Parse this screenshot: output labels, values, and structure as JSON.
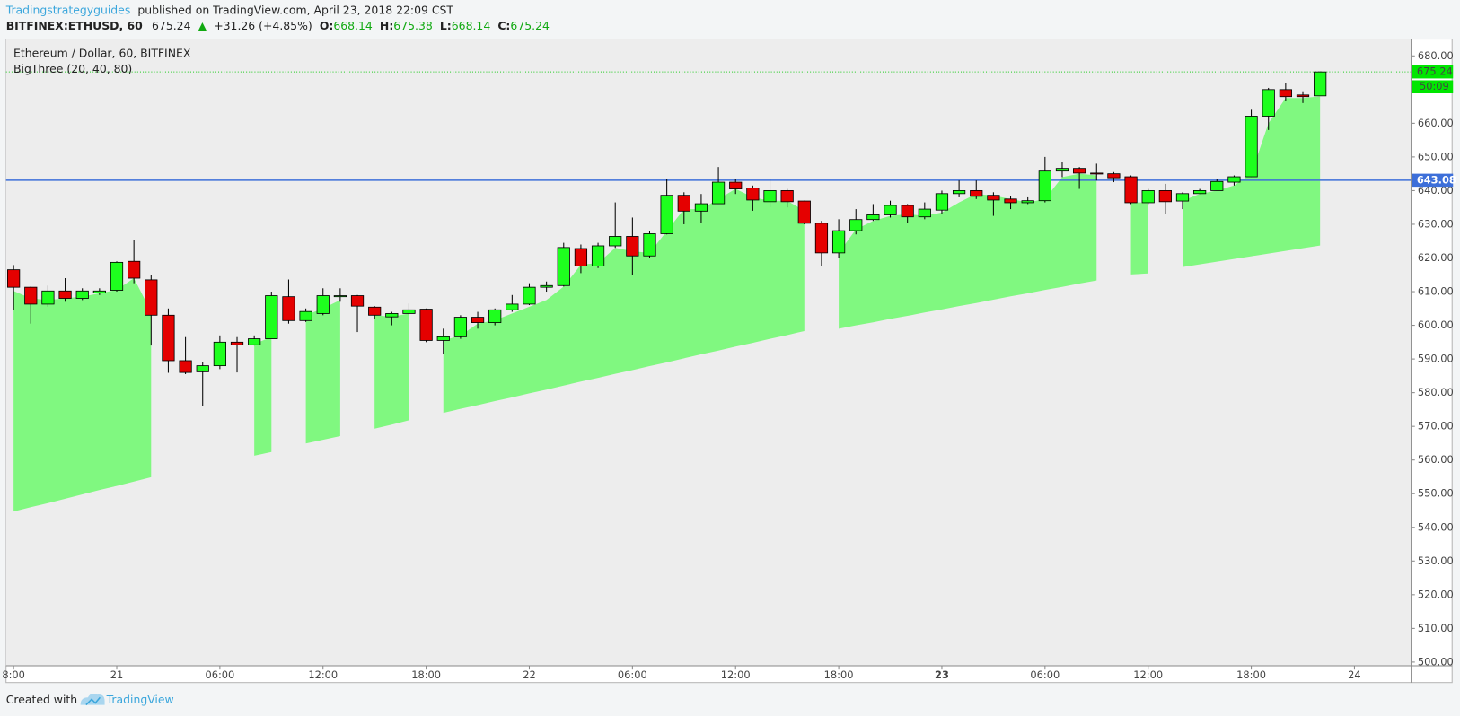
{
  "header": {
    "author": "Tradingstrategyguides",
    "published": "published on TradingView.com, April 23, 2018 22:09 CST",
    "symbol": "BITFINEX:ETHUSD, 60",
    "arrow": "▲",
    "change": "+31.26 (+4.85%)",
    "o_label": "O:",
    "h_label": "H:",
    "l_label": "L:",
    "c_label": "C:"
  },
  "footer": {
    "created": "Created with",
    "brand": "TradingView"
  },
  "chart_data": {
    "type": "candlestick",
    "title": "Ethereum / Dollar, 60, BITFINEX",
    "indicator": "BigThree (20, 40, 80)",
    "up_color": "#1eff1e",
    "down_color": "#e50000",
    "area_color": "#80f880",
    "open": [
      616.5,
      611.3,
      606.3,
      610.2,
      608,
      609.6,
      610.4,
      619,
      613.5,
      603,
      589.5,
      586.2,
      588,
      595,
      594.2,
      596,
      608.5,
      601.4,
      603.5,
      608.5,
      608.8,
      605.4,
      602.5,
      603.5,
      604.8,
      595.5,
      596.6,
      602.4,
      600.8,
      604.6,
      606.3,
      611.3,
      611.8,
      622.8,
      617.6,
      623.6,
      626.4,
      620.6,
      627.2,
      638.6,
      633.9,
      636.1,
      642.5,
      640.8,
      636.7,
      640,
      636.9,
      630.3,
      621.5,
      628.1,
      631.4,
      632.8,
      635.6,
      632.2,
      634.2,
      639.1,
      640,
      638.6,
      637.5,
      636.4,
      637,
      645.8,
      646.6,
      645.2,
      645,
      644.1,
      636.4,
      640,
      636.9,
      639.1,
      640,
      642.5,
      644.1,
      662.1,
      670,
      668.4,
      668.14
    ],
    "high": [
      617.9,
      611.5,
      611.8,
      614,
      611,
      611,
      619,
      625.3,
      615,
      605,
      596.5,
      589,
      597,
      596.5,
      597,
      610,
      613.6,
      605,
      611,
      611,
      609,
      605.7,
      604,
      606.5,
      605,
      599,
      603,
      604,
      605,
      609,
      612.5,
      613,
      624.5,
      624,
      624.5,
      636.5,
      632,
      628,
      643.5,
      639.5,
      639,
      647,
      643.5,
      641.5,
      643.5,
      640.5,
      637,
      631,
      631.5,
      634.5,
      636,
      637,
      636,
      636.5,
      640,
      643,
      643,
      639.5,
      638.5,
      638,
      650,
      648.5,
      647,
      648,
      645.5,
      644.5,
      640.5,
      642,
      639.5,
      640.5,
      643.5,
      644.5,
      664,
      670.5,
      672,
      669.5,
      675.38
    ],
    "low": [
      604.6,
      600.5,
      605.5,
      607,
      607.5,
      609,
      610,
      612.5,
      594,
      585.9,
      585.5,
      576,
      587,
      586,
      594,
      596,
      600.5,
      601,
      603,
      607,
      598,
      602,
      600,
      603,
      595,
      591.5,
      596,
      599,
      600,
      604,
      606,
      610,
      611.5,
      615.5,
      617,
      623,
      615,
      620,
      627,
      630,
      630.5,
      636,
      639,
      634,
      635,
      635,
      630,
      617.5,
      620,
      627,
      631,
      632,
      630.5,
      631.5,
      633,
      638,
      637.5,
      632.5,
      634.5,
      636,
      636.5,
      644,
      640.5,
      643,
      642.5,
      636,
      636,
      633,
      634.5,
      639,
      640,
      641.5,
      644,
      658,
      666.5,
      666,
      668.14
    ],
    "close": [
      611.3,
      606.3,
      610.2,
      608,
      610.2,
      610.2,
      618.7,
      614,
      603,
      589.5,
      586,
      588,
      595,
      594.2,
      596,
      608.8,
      601.4,
      604.1,
      608.8,
      608.8,
      605.7,
      603,
      603.5,
      604.6,
      595.5,
      596.6,
      602.4,
      600.8,
      604.6,
      606.3,
      611.3,
      611.8,
      623.1,
      617.6,
      623.6,
      626.4,
      620.6,
      627.2,
      638.6,
      633.9,
      636.1,
      642.5,
      640.5,
      637.2,
      640,
      636.7,
      630.3,
      621.5,
      628.1,
      631.4,
      632.8,
      635.6,
      632.2,
      634.5,
      639.1,
      640,
      638.3,
      637.2,
      636.4,
      637,
      645.8,
      646.6,
      645.2,
      645,
      643.8,
      636.4,
      640,
      636.7,
      639.1,
      640,
      642.7,
      644.1,
      662.1,
      670,
      667.9,
      667.9,
      675.24
    ],
    "area_upper": [
      610.2,
      608,
      607.5,
      608,
      608.5,
      609.5,
      610.5,
      614,
      604,
      null,
      null,
      null,
      null,
      null,
      594.5,
      596.5,
      null,
      603,
      605,
      607.5,
      null,
      603,
      602.5,
      603.5,
      null,
      595.5,
      597,
      600.5,
      601.5,
      603.5,
      605.5,
      607.5,
      611.5,
      618,
      618.5,
      623,
      622,
      621.5,
      628,
      634.5,
      634.5,
      637.5,
      640.5,
      638,
      637,
      637,
      634,
      null,
      621.5,
      628.5,
      631,
      632.5,
      633,
      632.5,
      633.5,
      636.5,
      639,
      638.5,
      637.5,
      636.5,
      637.5,
      644,
      645,
      644.5,
      null,
      636.5,
      636.5,
      null,
      637,
      639,
      640,
      641.5,
      645,
      660,
      667.5,
      667.5,
      668
    ],
    "area_lower": [
      544.7,
      546.0,
      547.2,
      548.5,
      549.8,
      551.1,
      552.3,
      553.6,
      554.9,
      null,
      null,
      null,
      null,
      null,
      561.3,
      562.4,
      null,
      564.9,
      566.0,
      567.1,
      null,
      569.3,
      570.5,
      571.8,
      null,
      574.0,
      575.2,
      576.3,
      577.5,
      578.6,
      579.8,
      580.9,
      582.1,
      583.3,
      584.4,
      585.6,
      586.7,
      587.9,
      589.0,
      590.2,
      591.4,
      592.5,
      593.7,
      594.8,
      596.0,
      597.1,
      598.3,
      null,
      599.0,
      600.0,
      600.9,
      601.9,
      602.8,
      603.8,
      604.7,
      605.7,
      606.6,
      607.6,
      608.6,
      609.5,
      610.5,
      611.4,
      612.4,
      613.3,
      null,
      615.1,
      615.4,
      null,
      617.3,
      618.1,
      618.9,
      619.7,
      620.5,
      621.3,
      622.1,
      622.9,
      623.7
    ],
    "hline": {
      "value": 643.08,
      "color": "#3d6fd9"
    },
    "countdown": "50:09",
    "xlim": [
      -0.44,
      81.3
    ],
    "xticks": [
      {
        "value": 0,
        "label": "8:00"
      },
      {
        "value": 6,
        "label": "21"
      },
      {
        "value": 12,
        "label": "06:00"
      },
      {
        "value": 18,
        "label": "12:00"
      },
      {
        "value": 24,
        "label": "18:00"
      },
      {
        "value": 30,
        "label": "22"
      },
      {
        "value": 36,
        "label": "06:00"
      },
      {
        "value": 42,
        "label": "12:00"
      },
      {
        "value": 48,
        "label": "18:00"
      },
      {
        "value": 54,
        "label": "23"
      },
      {
        "value": 60,
        "label": "06:00"
      },
      {
        "value": 66,
        "label": "12:00"
      },
      {
        "value": 72,
        "label": "18:00"
      },
      {
        "value": 78,
        "label": "24"
      }
    ],
    "ylim": [
      498.9,
      685
    ],
    "yticks": [
      {
        "value": 680,
        "label": "680.00"
      },
      {
        "value": 660,
        "label": "660.00"
      },
      {
        "value": 650,
        "label": "650.00"
      },
      {
        "value": 640,
        "label": "640.00"
      },
      {
        "value": 630,
        "label": "630.00"
      },
      {
        "value": 620,
        "label": "620.00"
      },
      {
        "value": 610,
        "label": "610.00"
      },
      {
        "value": 600,
        "label": "600.00"
      },
      {
        "value": 590,
        "label": "590.00"
      },
      {
        "value": 580,
        "label": "580.00"
      },
      {
        "value": 570,
        "label": "570.00"
      },
      {
        "value": 560,
        "label": "560.00"
      },
      {
        "value": 550,
        "label": "550.00"
      },
      {
        "value": 540,
        "label": "540.00"
      },
      {
        "value": 530,
        "label": "530.00"
      },
      {
        "value": 520,
        "label": "520.00"
      },
      {
        "value": 510,
        "label": "510.00"
      },
      {
        "value": 500,
        "label": "500.00"
      }
    ]
  }
}
